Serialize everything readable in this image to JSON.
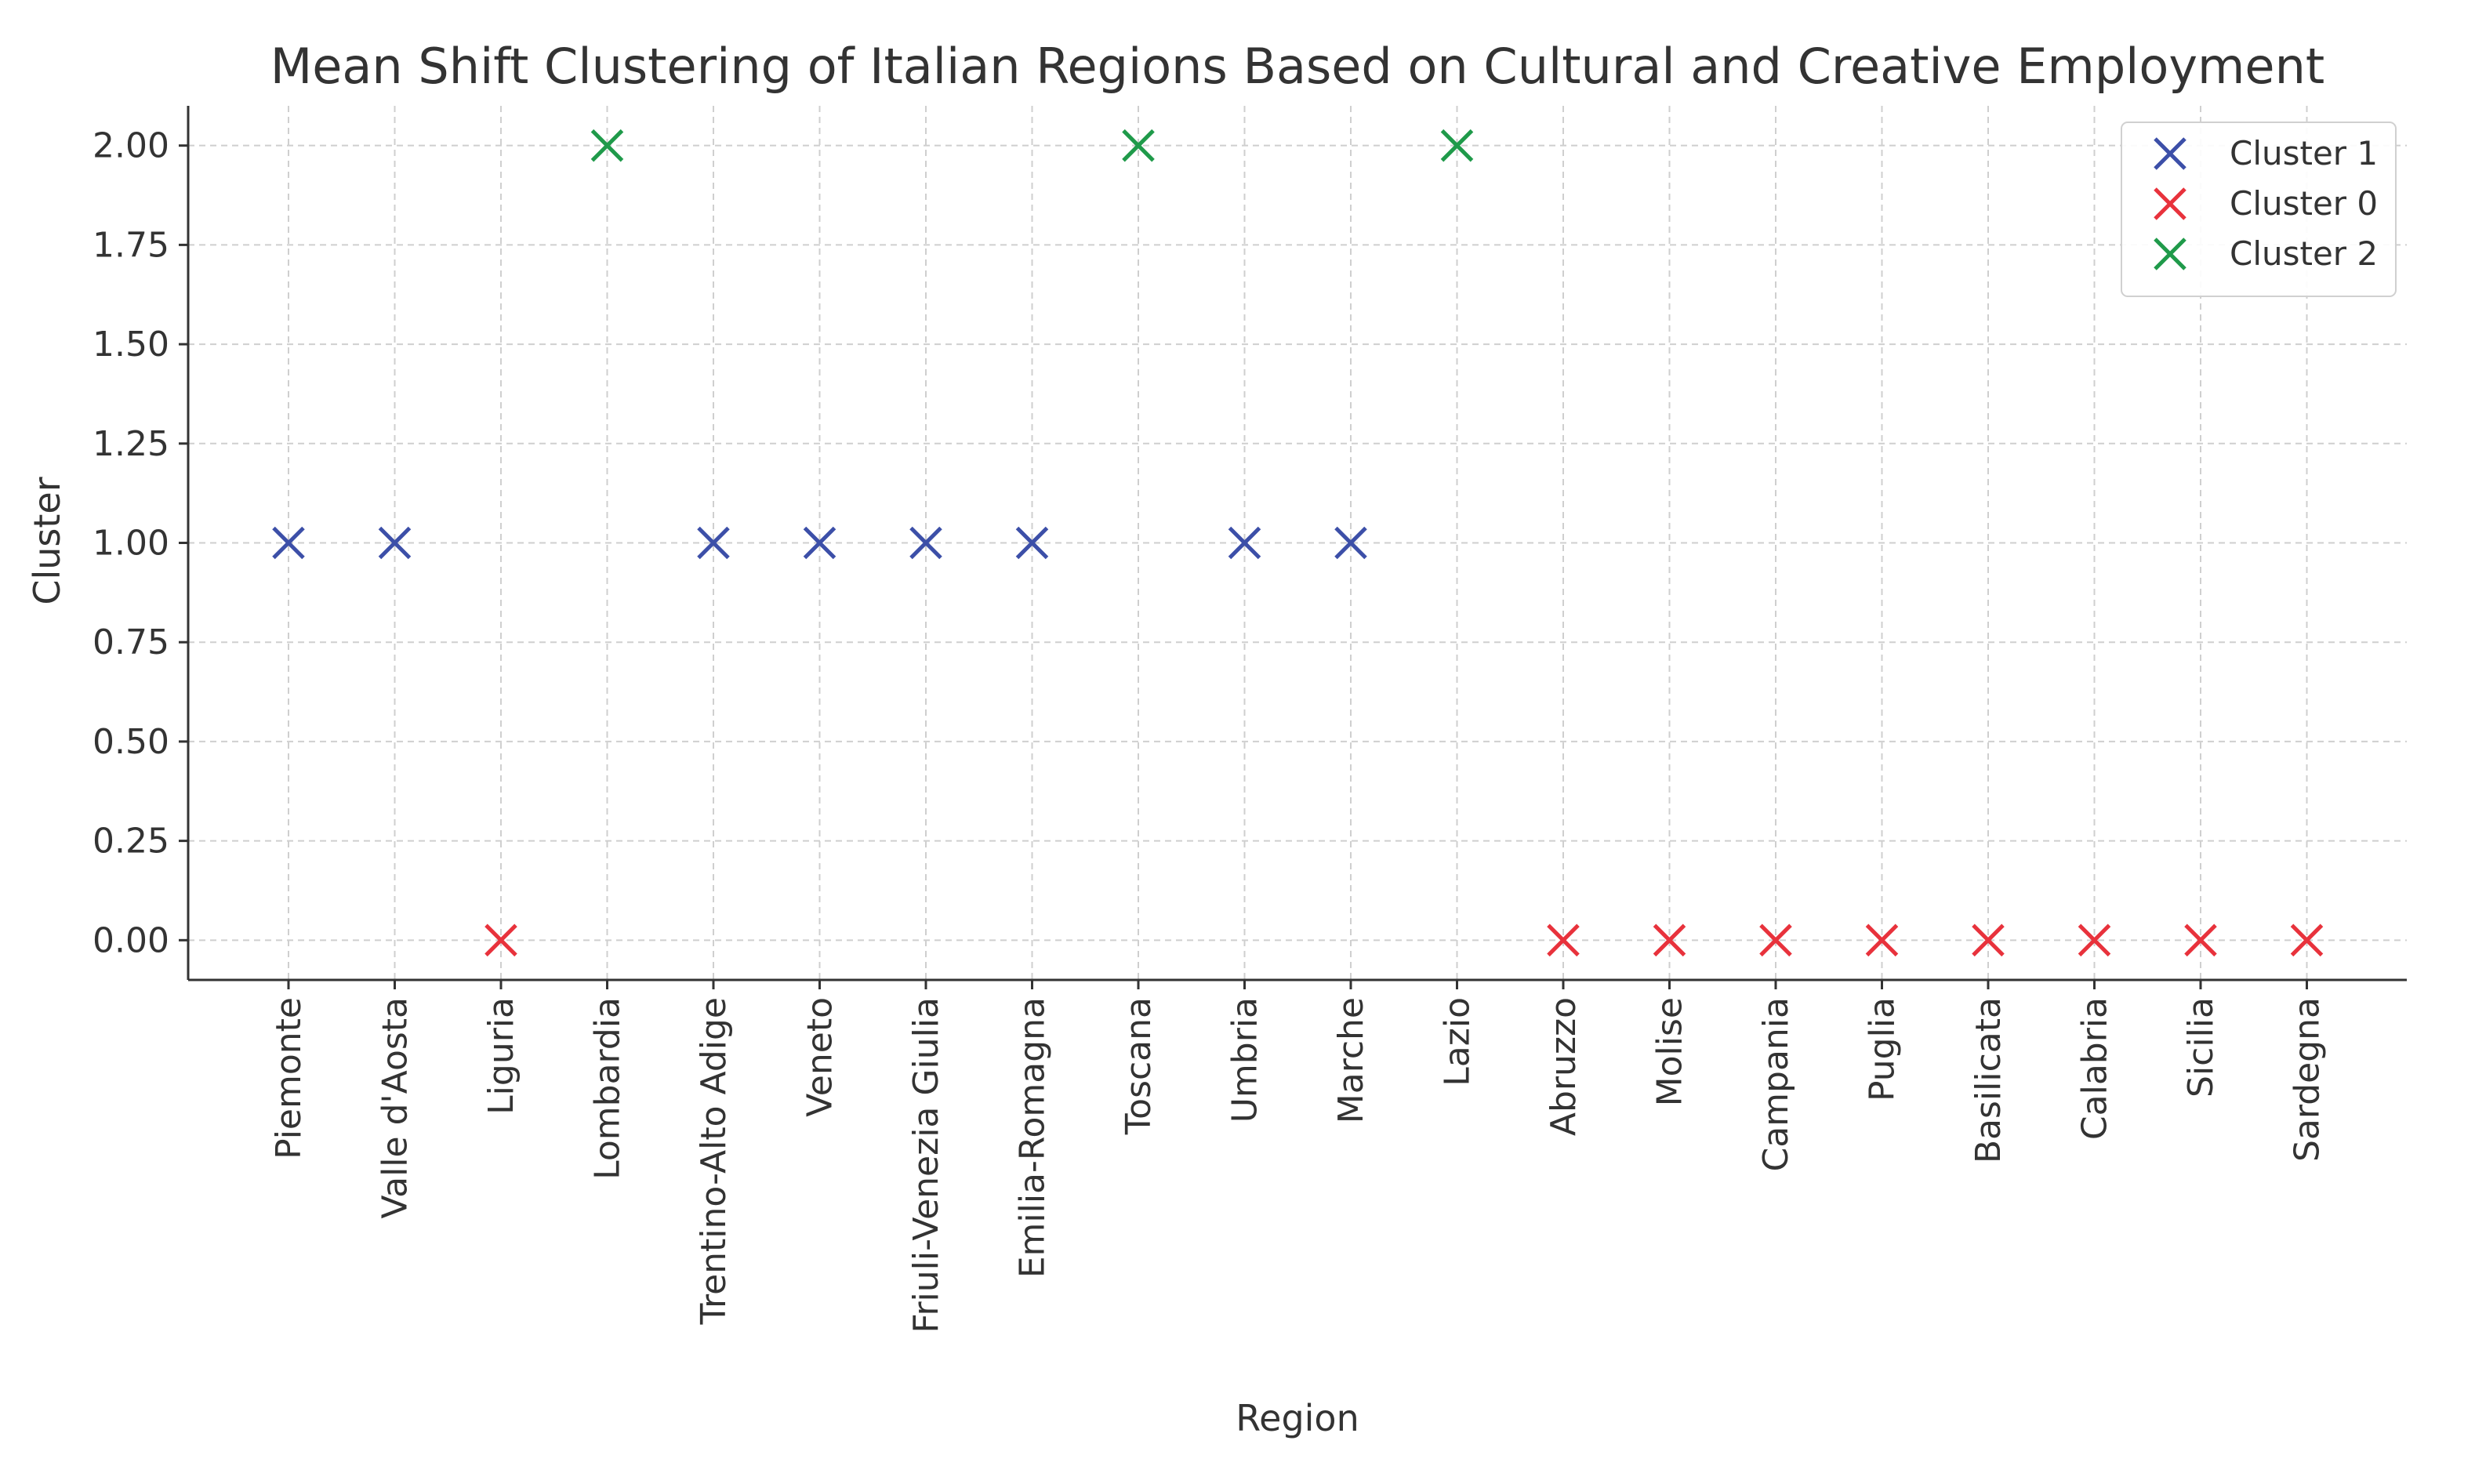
{
  "chart_data": {
    "type": "scatter",
    "title": "Mean Shift Clustering of Italian Regions Based on Cultural and Creative Employment",
    "xlabel": "Region",
    "ylabel": "Cluster",
    "categories": [
      "Piemonte",
      "Valle d'Aosta",
      "Liguria",
      "Lombardia",
      "Trentino-Alto Adige",
      "Veneto",
      "Friuli-Venezia Giulia",
      "Emilia-Romagna",
      "Toscana",
      "Umbria",
      "Marche",
      "Lazio",
      "Abruzzo",
      "Molise",
      "Campania",
      "Puglia",
      "Basilicata",
      "Calabria",
      "Sicilia",
      "Sardegna"
    ],
    "yticks": [
      "0.00",
      "0.25",
      "0.50",
      "0.75",
      "1.00",
      "1.25",
      "1.50",
      "1.75",
      "2.00"
    ],
    "ylim": [
      -0.1,
      2.1
    ],
    "grid": true,
    "legend_position": "top-right",
    "marker": "x",
    "series": [
      {
        "name": "Cluster 1",
        "color": "#3c4fa8",
        "points": [
          {
            "x": "Piemonte",
            "y": 1
          },
          {
            "x": "Valle d'Aosta",
            "y": 1
          },
          {
            "x": "Trentino-Alto Adige",
            "y": 1
          },
          {
            "x": "Veneto",
            "y": 1
          },
          {
            "x": "Friuli-Venezia Giulia",
            "y": 1
          },
          {
            "x": "Emilia-Romagna",
            "y": 1
          },
          {
            "x": "Umbria",
            "y": 1
          },
          {
            "x": "Marche",
            "y": 1
          }
        ]
      },
      {
        "name": "Cluster 0",
        "color": "#e8323c",
        "points": [
          {
            "x": "Liguria",
            "y": 0
          },
          {
            "x": "Abruzzo",
            "y": 0
          },
          {
            "x": "Molise",
            "y": 0
          },
          {
            "x": "Campania",
            "y": 0
          },
          {
            "x": "Puglia",
            "y": 0
          },
          {
            "x": "Basilicata",
            "y": 0
          },
          {
            "x": "Calabria",
            "y": 0
          },
          {
            "x": "Sicilia",
            "y": 0
          },
          {
            "x": "Sardegna",
            "y": 0
          }
        ]
      },
      {
        "name": "Cluster 2",
        "color": "#1f9a4a",
        "points": [
          {
            "x": "Lombardia",
            "y": 2
          },
          {
            "x": "Toscana",
            "y": 2
          },
          {
            "x": "Lazio",
            "y": 2
          }
        ]
      }
    ]
  }
}
